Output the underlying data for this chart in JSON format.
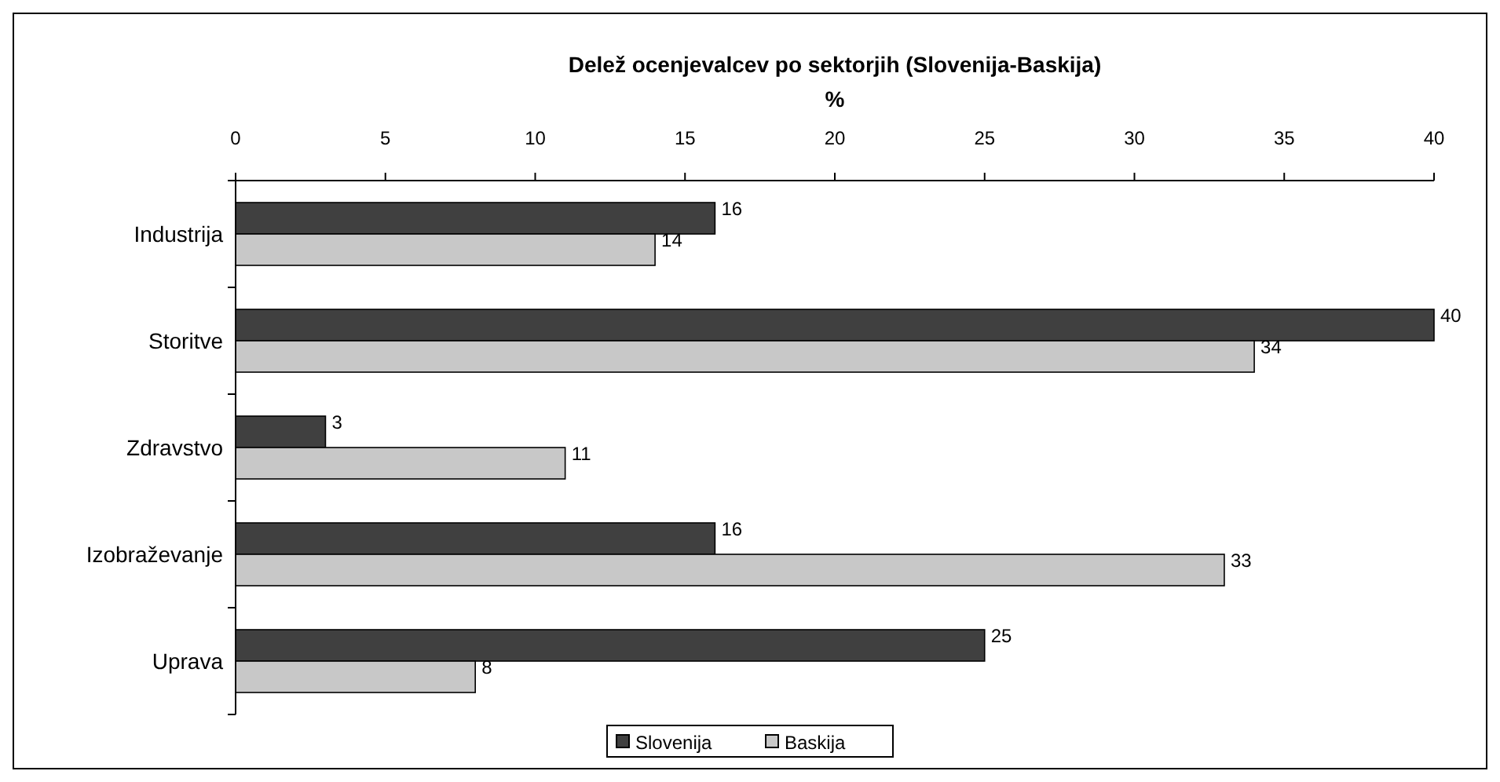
{
  "chart_data": {
    "type": "bar",
    "orientation": "horizontal",
    "title": "Delež ocenjevalcev po sektorjih (Slovenija-Baskija)",
    "xlabel": "%",
    "categories": [
      "Industrija",
      "Storitve",
      "Zdravstvo",
      "Izobraževanje",
      "Uprava"
    ],
    "series": [
      {
        "name": "Slovenija",
        "color": "#404040",
        "values": [
          16,
          40,
          3,
          16,
          25
        ]
      },
      {
        "name": "Baskija",
        "color": "#c8c8c8",
        "values": [
          14,
          34,
          11,
          33,
          8
        ]
      }
    ],
    "xlim": [
      0,
      40
    ],
    "xticks": [
      0,
      5,
      10,
      15,
      20,
      25,
      30,
      35,
      40
    ],
    "data_labels": true,
    "legend": "bottom",
    "grid": false
  }
}
